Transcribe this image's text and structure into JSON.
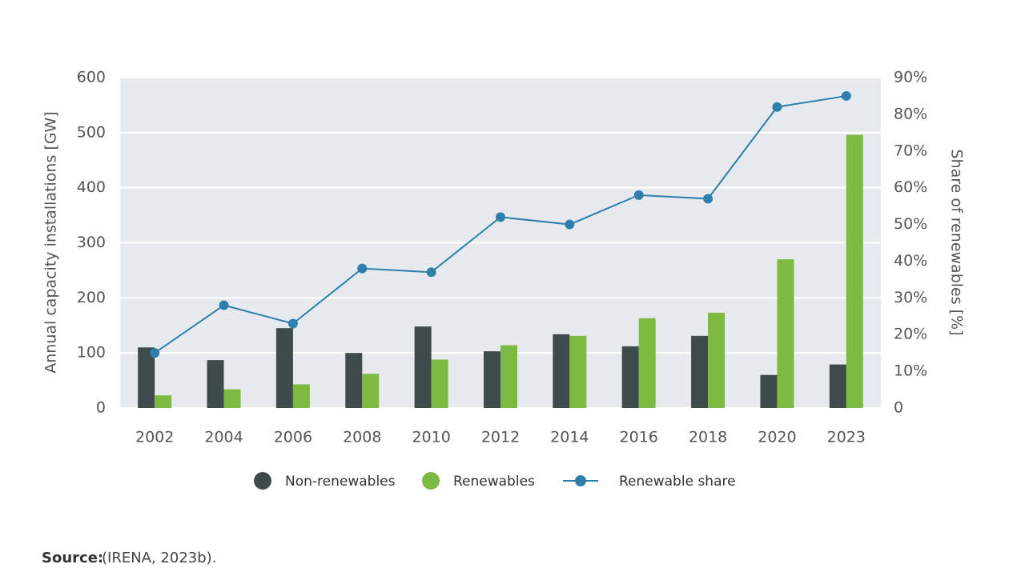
{
  "chart_data": {
    "type": "bar-line",
    "y_label": "Annual capacity installations [GW]",
    "y2_label": "Share of renewables [%]",
    "categories": [
      "2002",
      "2004",
      "2006",
      "2008",
      "2010",
      "2012",
      "2014",
      "2016",
      "2018",
      "2020",
      "2023"
    ],
    "series": [
      {
        "name": "Non-renewables",
        "type": "bar",
        "color": "#3f4a4c",
        "values": [
          110,
          87,
          145,
          100,
          148,
          103,
          134,
          112,
          131,
          60,
          79
        ]
      },
      {
        "name": "Renewables",
        "type": "bar",
        "color": "#7dba42",
        "values": [
          23,
          34,
          43,
          62,
          88,
          114,
          131,
          163,
          173,
          270,
          496
        ]
      },
      {
        "name": "Renewable share",
        "type": "line",
        "axis": "y2",
        "color": "#2f7fab",
        "values": [
          15,
          28,
          23,
          38,
          37,
          52,
          50,
          58,
          57,
          82,
          85
        ]
      }
    ],
    "ylim": [
      0,
      600
    ],
    "yticks": [
      0,
      100,
      200,
      300,
      400,
      500,
      600
    ],
    "y2lim": [
      0,
      90
    ],
    "y2ticks": [
      0,
      {
        "value": 10,
        "label": "10%"
      },
      {
        "value": 20,
        "label": "20%"
      },
      {
        "value": 30,
        "label": "30%"
      },
      {
        "value": 40,
        "label": "40%"
      },
      {
        "value": 50,
        "label": "50%"
      },
      {
        "value": 60,
        "label": "60%"
      },
      {
        "value": 70,
        "label": "70%"
      },
      {
        "value": 80,
        "label": "80%"
      },
      {
        "value": 90,
        "label": "90%"
      }
    ],
    "grid": true,
    "legend": "bottom",
    "source_label": "Source:",
    "source": "(IRENA, 2023b)."
  }
}
